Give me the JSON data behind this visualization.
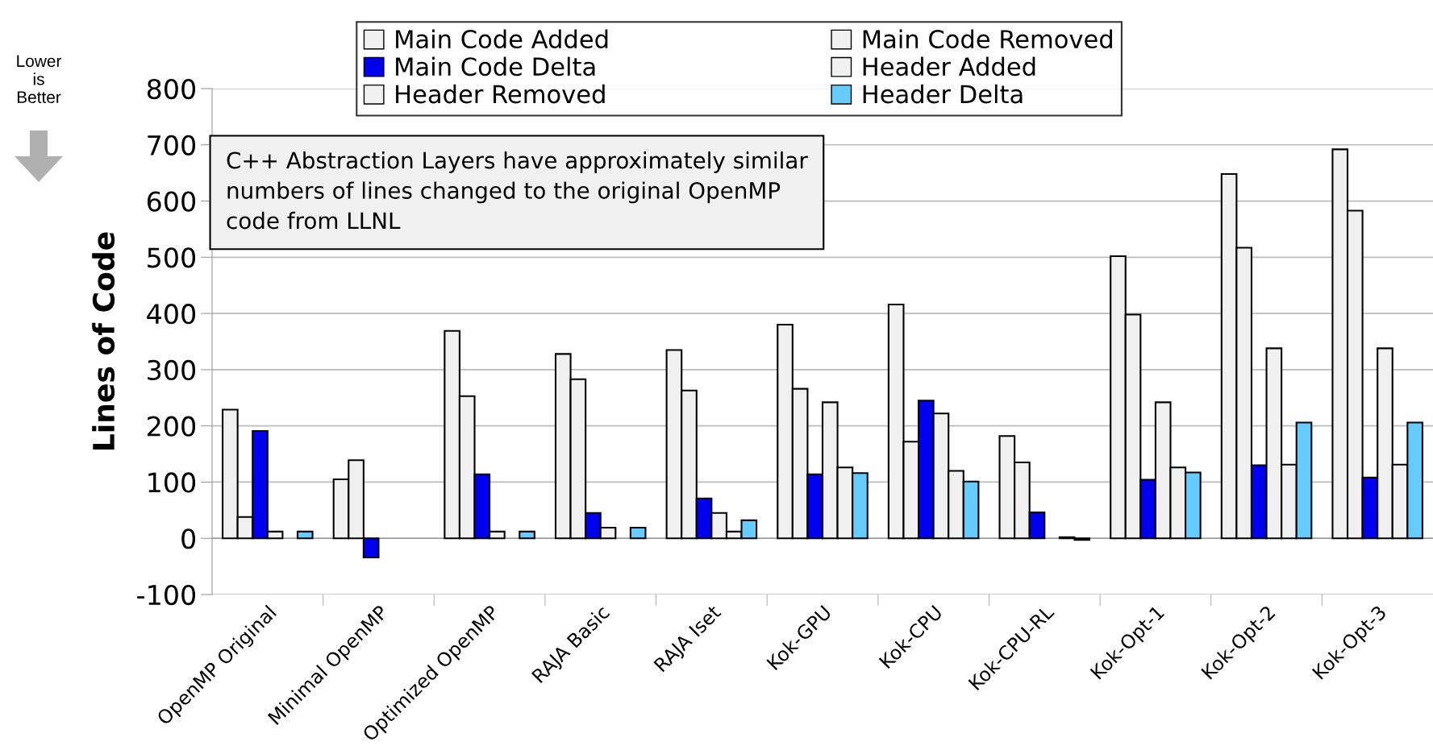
{
  "chart_data": {
    "type": "bar",
    "ylabel": "Lines of Code",
    "categories": [
      "OpenMP Original",
      "Minimal OpenMP",
      "Optimized OpenMP",
      "RAJA Basic",
      "RAJA Iset",
      "Kok-GPU",
      "Kok-CPU",
      "Kok-CPU-RL",
      "Kok-Opt-1",
      "Kok-Opt-2",
      "Kok-Opt-3"
    ],
    "series": [
      {
        "name": "Main Code Added",
        "color": "#f0f0f0",
        "values": [
          229,
          105,
          369,
          328,
          335,
          380,
          416,
          182,
          502,
          648,
          692
        ]
      },
      {
        "name": "Main Code Removed",
        "color": "#f0f0f0",
        "values": [
          38,
          139,
          253,
          283,
          263,
          266,
          172,
          135,
          398,
          517,
          583
        ]
      },
      {
        "name": "Main Code Delta",
        "color": "#0000ee",
        "values": [
          191,
          -34,
          114,
          45,
          71,
          114,
          245,
          46,
          104,
          130,
          108
        ]
      },
      {
        "name": "Header Added",
        "color": "#f0f0f0",
        "values": [
          12,
          null,
          12,
          19,
          45,
          242,
          222,
          null,
          242,
          338,
          338
        ]
      },
      {
        "name": "Header Removed",
        "color": "#f0f0f0",
        "values": [
          null,
          null,
          null,
          null,
          12,
          126,
          120,
          2,
          126,
          131,
          131
        ]
      },
      {
        "name": "Header Delta",
        "color": "#66ccff",
        "values": [
          12,
          null,
          12,
          19,
          32,
          116,
          101,
          -3,
          117,
          206,
          206
        ]
      }
    ],
    "ylim": [
      -100,
      800
    ],
    "yticks": [
      -100,
      0,
      100,
      200,
      300,
      400,
      500,
      600,
      700,
      800
    ],
    "grid": "y",
    "legend": "top",
    "annotations": [
      "C++ Abstraction Layers have approximately similar\nnumbers of lines changed to the original OpenMP\ncode from LLNL",
      "Lower\nis\nBetter"
    ]
  }
}
